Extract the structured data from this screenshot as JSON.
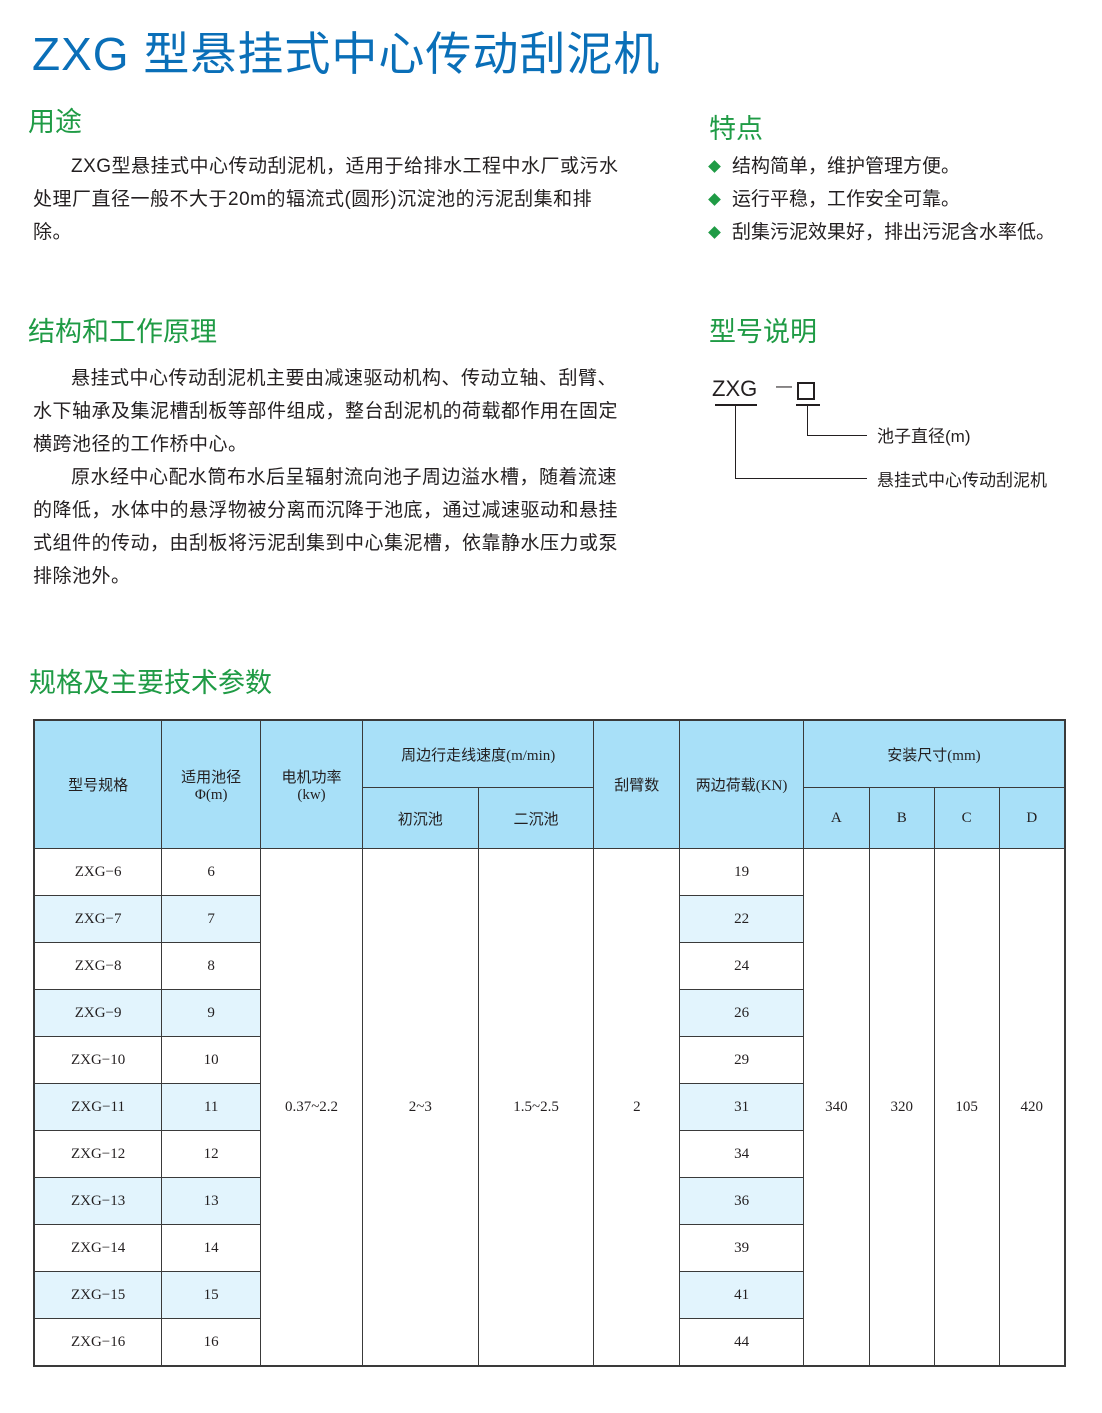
{
  "title": "ZXG 型悬挂式中心传动刮泥机",
  "usage": {
    "heading": "用途",
    "text": "ZXG型悬挂式中心传动刮泥机，适用于给排水工程中水厂或污水处理厂直径一般不大于20m的辐流式(圆形)沉淀池的污泥刮集和排除。"
  },
  "features": {
    "heading": "特点",
    "items": [
      "结构简单，维护管理方便。",
      "运行平稳，工作安全可靠。",
      "刮集污泥效果好，排出污泥含水率低。"
    ],
    "bullet_color": "#1f9b45"
  },
  "structure": {
    "heading": "结构和工作原理",
    "paragraphs": [
      "悬挂式中心传动刮泥机主要由减速驱动机构、传动立轴、刮臂、水下轴承及集泥槽刮板等部件组成，整台刮泥机的荷载都作用在固定横跨池径的工作桥中心。",
      "原水经中心配水筒布水后呈辐射流向池子周边溢水槽，随着流速的降低，水体中的悬浮物被分离而沉降于池底，通过减速驱动和悬挂式组件的传动，由刮板将污泥刮集到中心集泥槽，依靠静水压力或泵排除池外。"
    ]
  },
  "model_desc": {
    "heading": "型号说明",
    "code": "ZXG",
    "dash": "—",
    "label_diameter": "池子直径(m)",
    "label_type": "悬挂式中心传动刮泥机"
  },
  "specs": {
    "heading": "规格及主要技术参数",
    "headers": {
      "model": "型号规格",
      "diameter": "适用池径",
      "diameter_unit": "Φ(m)",
      "power": "电机功率",
      "power_unit": "(kw)",
      "speed": "周边行走线速度(m/min)",
      "speed_primary": "初沉池",
      "speed_secondary": "二沉池",
      "arms": "刮臂数",
      "load": "两边荷载(KN)",
      "install": "安装尺寸(mm)",
      "A": "A",
      "B": "B",
      "C": "C",
      "D": "D"
    },
    "shared": {
      "power": "0.37~2.2",
      "speed_primary": "2~3",
      "speed_secondary": "1.5~2.5",
      "arms": "2",
      "A": "340",
      "B": "320",
      "C": "105",
      "D": "420"
    },
    "rows": [
      {
        "model": "ZXG−6",
        "diameter": "6",
        "load": "19"
      },
      {
        "model": "ZXG−7",
        "diameter": "7",
        "load": "22"
      },
      {
        "model": "ZXG−8",
        "diameter": "8",
        "load": "24"
      },
      {
        "model": "ZXG−9",
        "diameter": "9",
        "load": "26"
      },
      {
        "model": "ZXG−10",
        "diameter": "10",
        "load": "29"
      },
      {
        "model": "ZXG−11",
        "diameter": "11",
        "load": "31"
      },
      {
        "model": "ZXG−12",
        "diameter": "12",
        "load": "34"
      },
      {
        "model": "ZXG−13",
        "diameter": "13",
        "load": "36"
      },
      {
        "model": "ZXG−14",
        "diameter": "14",
        "load": "39"
      },
      {
        "model": "ZXG−15",
        "diameter": "15",
        "load": "41"
      },
      {
        "model": "ZXG−16",
        "diameter": "16",
        "load": "44"
      }
    ],
    "header_color": "#a8e0f8",
    "alt_row_color": "#e2f4fd"
  }
}
